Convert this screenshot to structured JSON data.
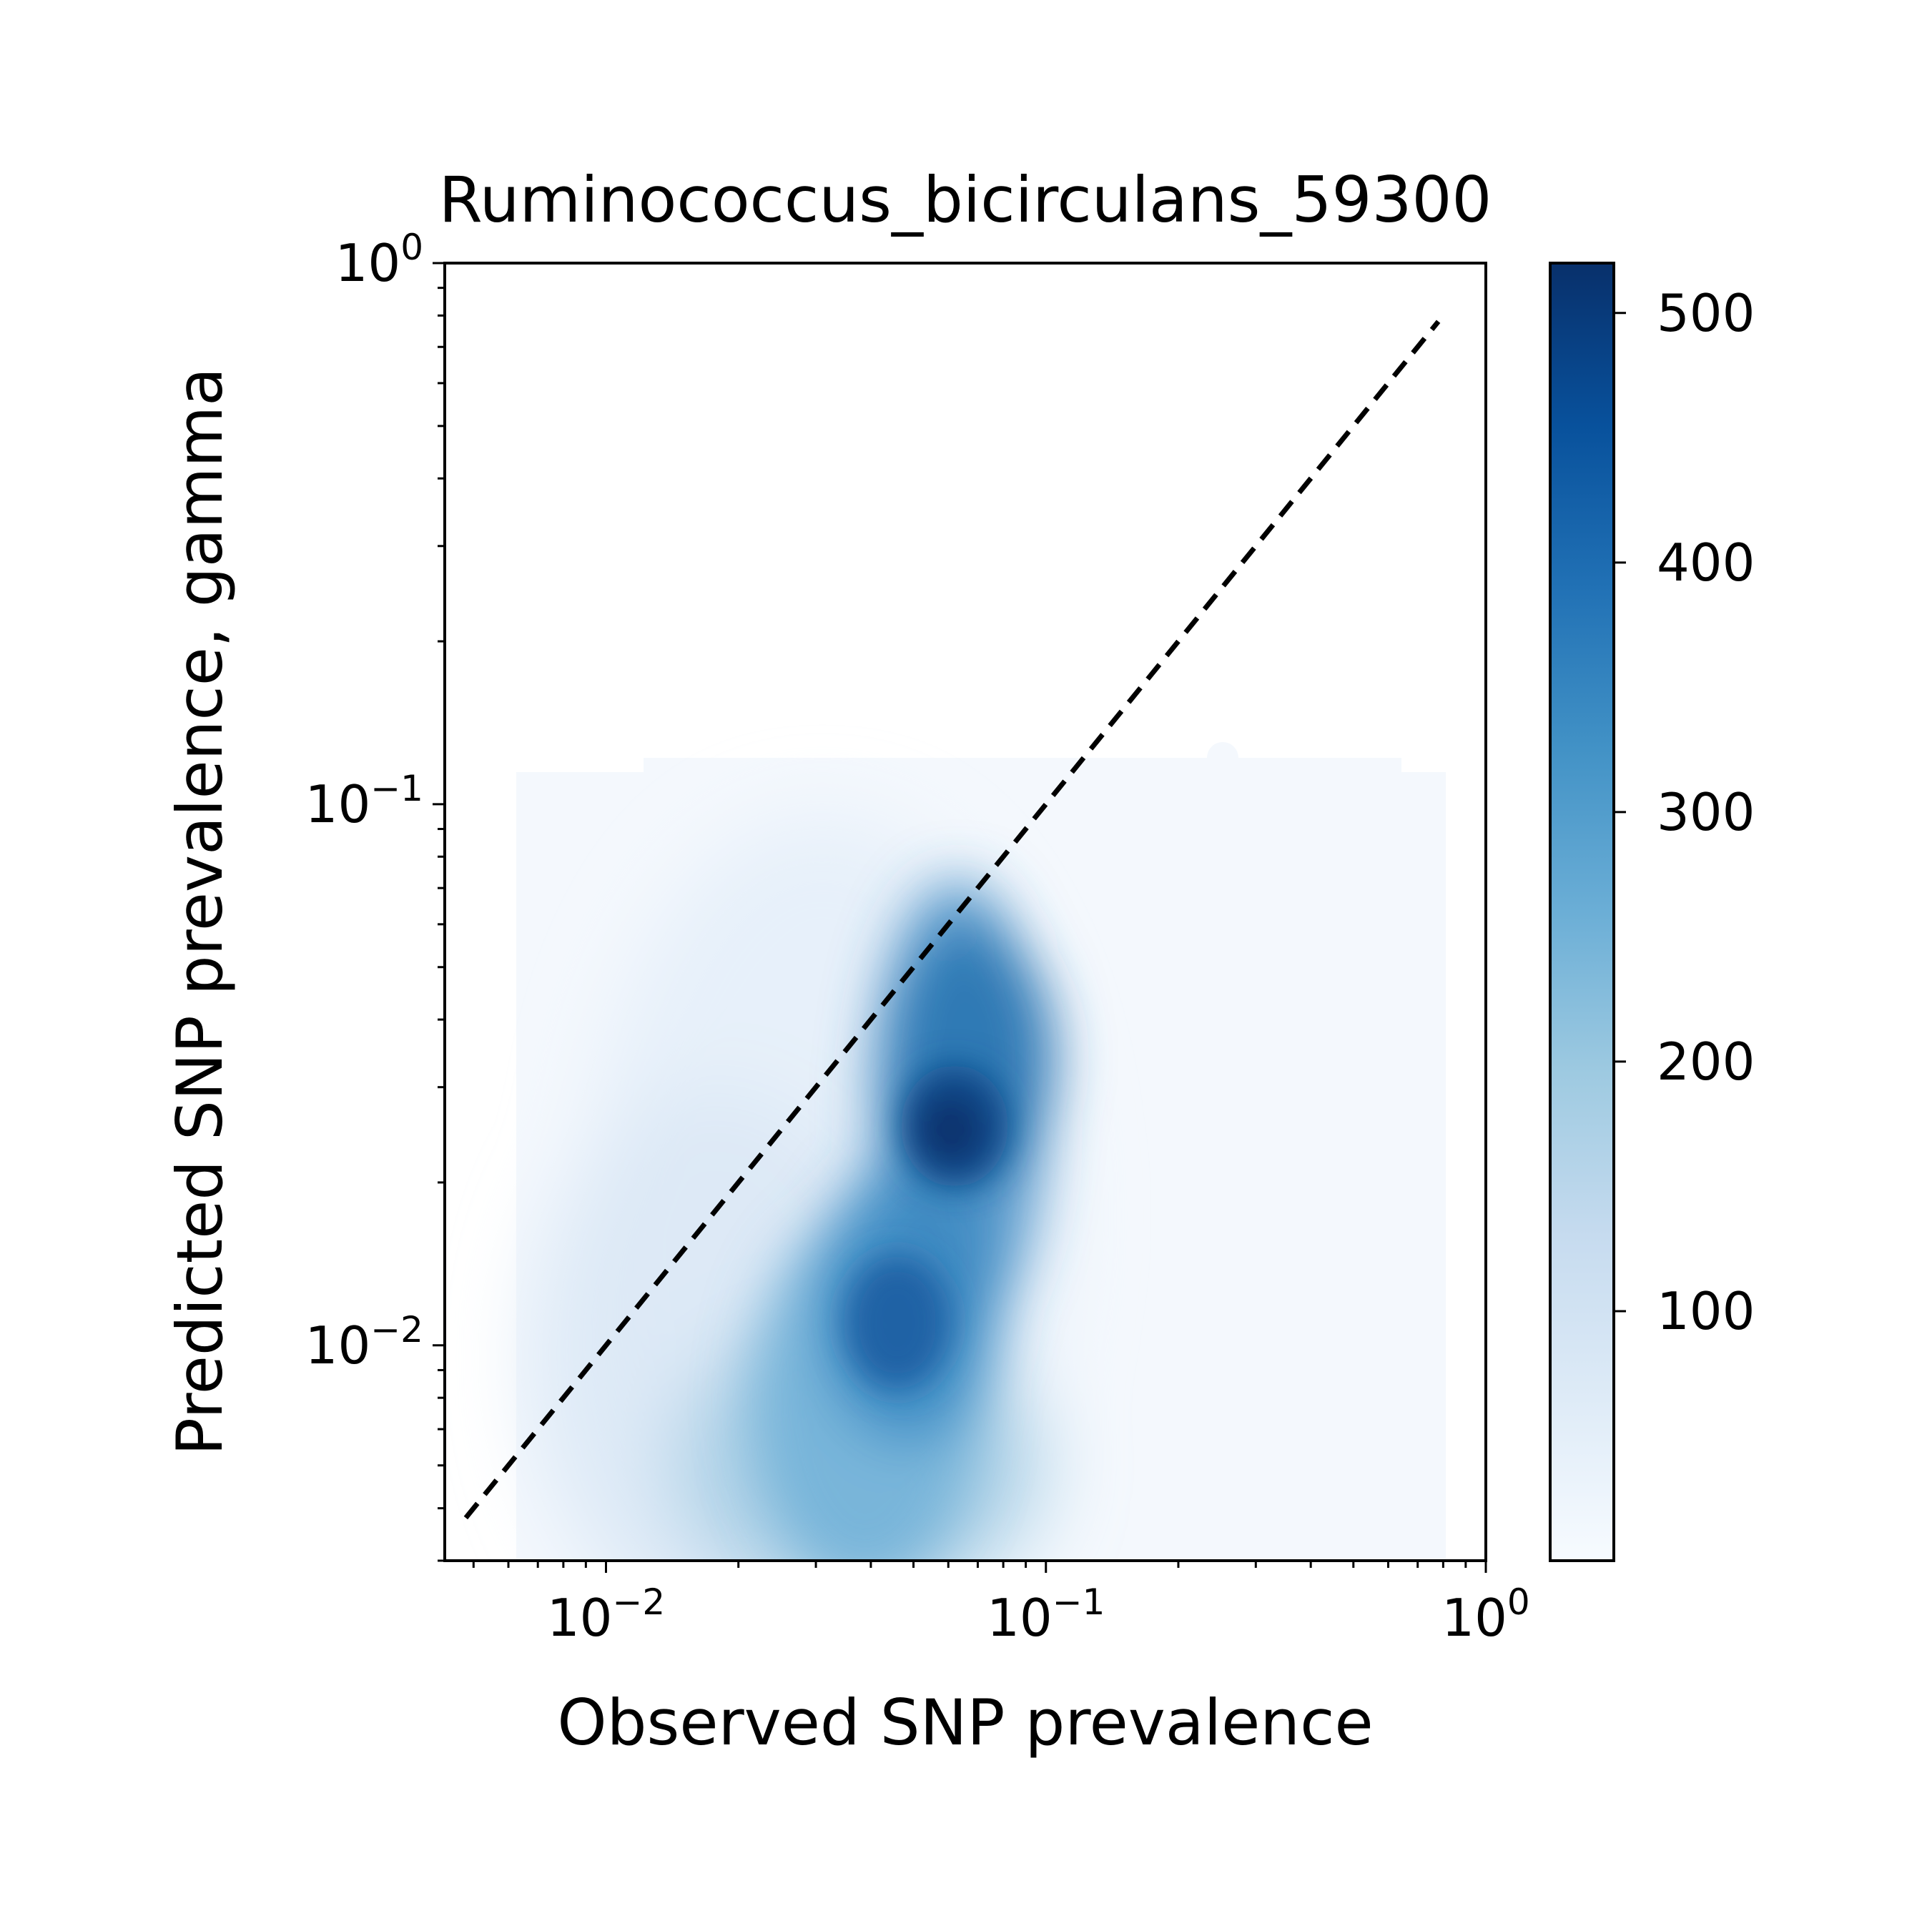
{
  "chart_data": {
    "type": "heatmap",
    "title": "Ruminococcus_bicirculans_59300",
    "xlabel": "Observed SNP prevalence",
    "ylabel": "Predicted SNP prevalence, gamma",
    "xscale": "log",
    "yscale": "log",
    "xlim": [
      0.0043,
      1.0
    ],
    "ylim": [
      0.004,
      1.0
    ],
    "xticks": [
      {
        "value": 0.01,
        "base": "10",
        "exp": "−2"
      },
      {
        "value": 0.1,
        "base": "10",
        "exp": "−1"
      },
      {
        "value": 1,
        "base": "10",
        "exp": "0"
      }
    ],
    "yticks": [
      {
        "value": 0.01,
        "base": "10",
        "exp": "−2"
      },
      {
        "value": 0.1,
        "base": "10",
        "exp": "−1"
      },
      {
        "value": 1,
        "base": "10",
        "exp": "0"
      }
    ],
    "density_clusters": [
      {
        "x": 0.058,
        "y": 0.024,
        "peak": 520
      },
      {
        "x": 0.042,
        "y": 0.01,
        "peak": 440
      }
    ],
    "reference_line": {
      "style": "dashed",
      "color": "#000000",
      "x": [
        0.0048,
        0.78
      ],
      "y": [
        0.0048,
        0.78
      ]
    },
    "colorbar": {
      "colormap": "Blues",
      "min": 0,
      "max": 520,
      "ticks": [
        100,
        200,
        300,
        400,
        500
      ],
      "tick_labels": [
        "100",
        "200",
        "300",
        "400",
        "500"
      ]
    },
    "grid": false
  }
}
